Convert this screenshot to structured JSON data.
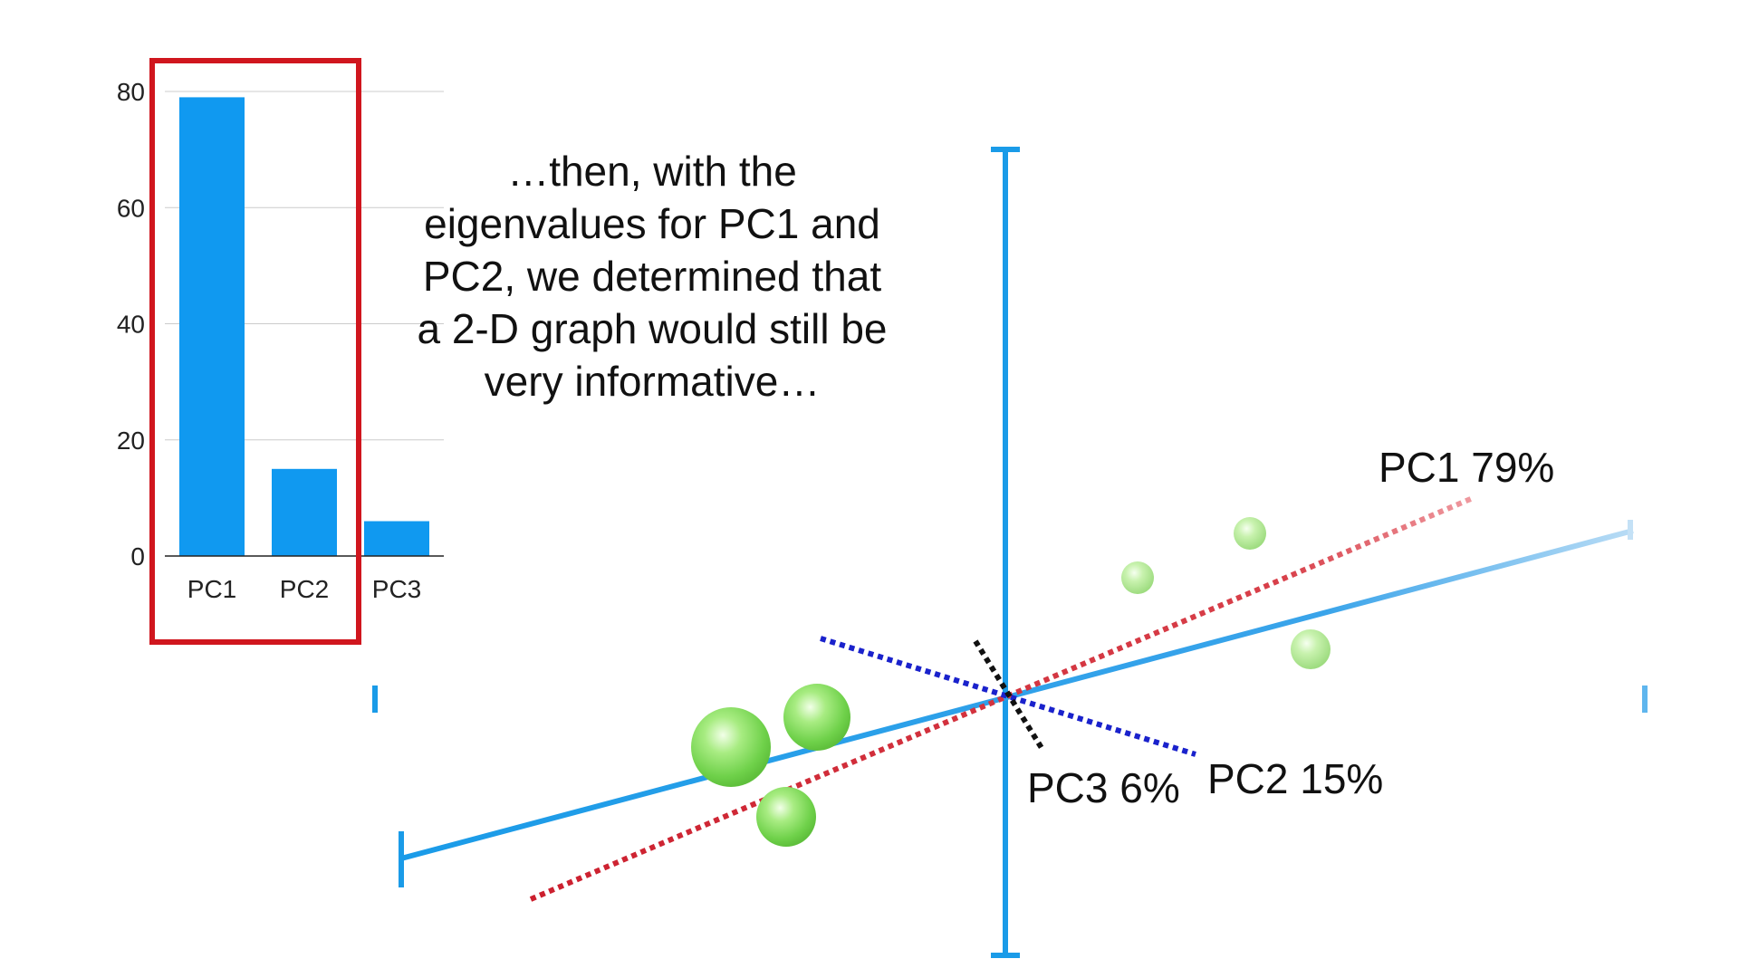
{
  "caption": {
    "lines": [
      "…then, with the",
      "eigenvalues for PC1 and",
      "PC2, we determined that",
      "a 2-D graph would still be",
      "very informative…"
    ]
  },
  "colors": {
    "bar": "#1099f0",
    "axis": "#1a9be8",
    "highlight_box": "#d0161e",
    "pc1_line": "#cc1f2e",
    "pc2_line": "#1a22cc",
    "pc3_line": "#111111",
    "point": "#7fd85a",
    "gridline": "#cccccc"
  },
  "chart_data": {
    "type": "bar",
    "categories": [
      "PC1",
      "PC2",
      "PC3"
    ],
    "values": [
      79,
      15,
      6
    ],
    "ylim": [
      0,
      80
    ],
    "yticks": [
      0,
      20,
      40,
      60,
      80
    ],
    "ytick_labels": [
      "0",
      "20",
      "40",
      "60",
      "80"
    ],
    "grid": true,
    "highlighted_categories": [
      "PC1",
      "PC2"
    ]
  },
  "pca_plot": {
    "labels": {
      "pc1": "PC1 79%",
      "pc2": "PC2 15%",
      "pc3": "PC3 6%"
    },
    "point_count": 6
  }
}
